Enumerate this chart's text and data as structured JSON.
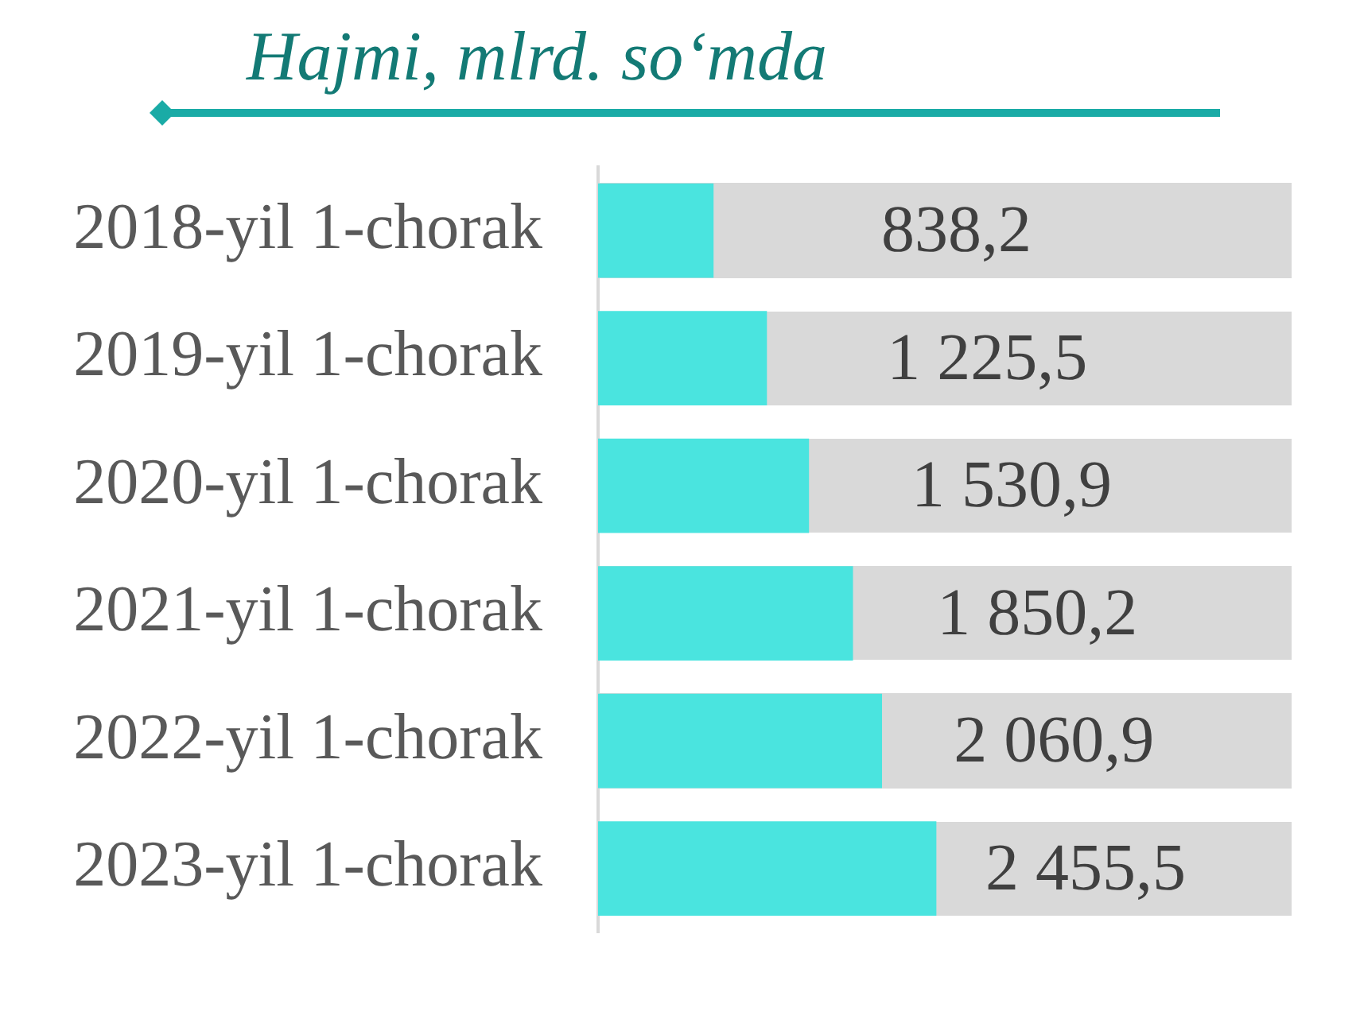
{
  "chart_data": {
    "type": "bar",
    "orientation": "horizontal",
    "title": "Hajmi, mlrd. so‘mda",
    "categories": [
      "2018-yil 1-chorak",
      "2019-yil 1-chorak",
      "2020-yil 1-chorak",
      "2021-yil 1-chorak",
      "2022-yil 1-chorak",
      "2023-yil 1-chorak"
    ],
    "values": [
      838.2,
      1225.5,
      1530.9,
      1850.2,
      2060.9,
      2455.5
    ],
    "color": "#4ae4df",
    "value_labels": [
      "838,2",
      "1 225,5",
      "1 530,9",
      "1 850,2",
      "2 060,9",
      "2 455,5"
    ],
    "tick_labels": "y",
    "legend": false
  }
}
